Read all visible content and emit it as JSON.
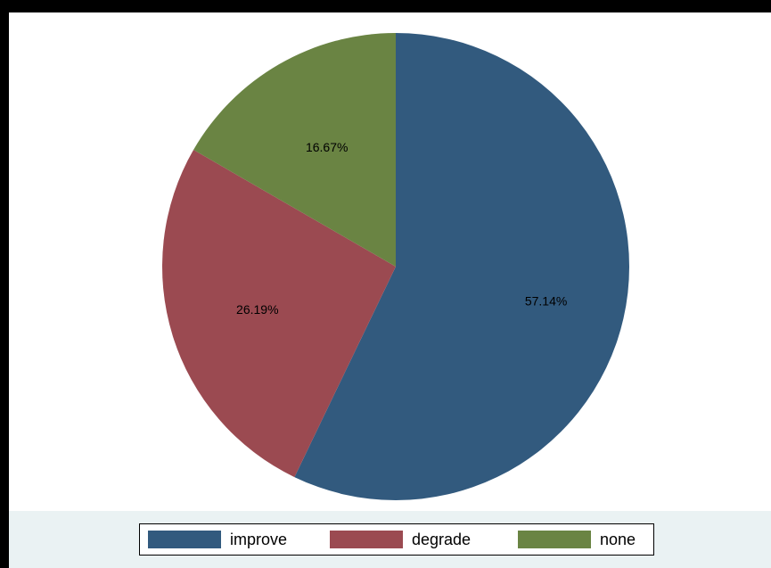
{
  "chart_data": {
    "type": "pie",
    "title": "",
    "slices": [
      {
        "name": "improve",
        "value": 57.14,
        "label": "57.14%",
        "color": "#325a7e"
      },
      {
        "name": "degrade",
        "value": 26.19,
        "label": "26.19%",
        "color": "#9b4a51"
      },
      {
        "name": "none",
        "value": 16.67,
        "label": "16.67%",
        "color": "#6a8443"
      }
    ],
    "legend_position": "bottom",
    "start_angle_deg": 90,
    "direction": "clockwise"
  },
  "legend": {
    "items": [
      {
        "label": "improve",
        "color": "#325a7e"
      },
      {
        "label": "degrade",
        "color": "#9b4a51"
      },
      {
        "label": "none",
        "color": "#6a8443"
      }
    ]
  },
  "colors": {
    "background_outer": "#eaf2f3",
    "plot_background": "#ffffff",
    "frame": "#000000"
  }
}
